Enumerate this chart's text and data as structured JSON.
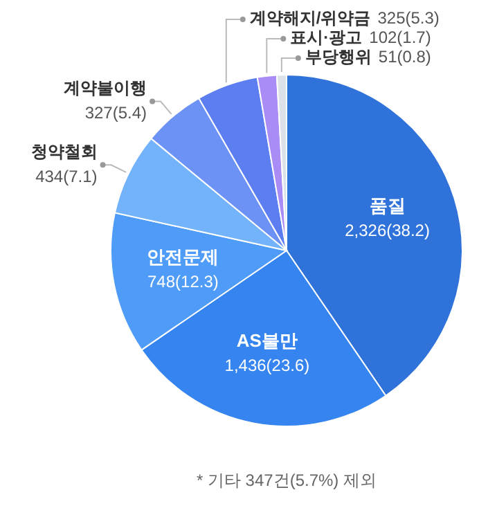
{
  "chart_data": {
    "type": "pie",
    "categories": [
      "품질",
      "AS불만",
      "안전문제",
      "청약철회",
      "계약불이행",
      "계약해지/위약금",
      "표시·광고",
      "부당행위"
    ],
    "values": [
      2326,
      1436,
      748,
      434,
      327,
      325,
      102,
      51
    ],
    "value_labels": [
      "2,326(38.2)",
      "1,436(23.6)",
      "748(12.3)",
      "434(7.1)",
      "327(5.4)",
      "325(5.3)",
      "102(1.7)",
      "51(0.8)"
    ],
    "colors": [
      "#2f72d9",
      "#3584ef",
      "#4f9bf8",
      "#72b3fb",
      "#6c92f6",
      "#5c7ef1",
      "#a98cf6",
      "#dde1e8"
    ],
    "annotations": [
      "* 기타 347건(5.7%) 제외"
    ]
  }
}
